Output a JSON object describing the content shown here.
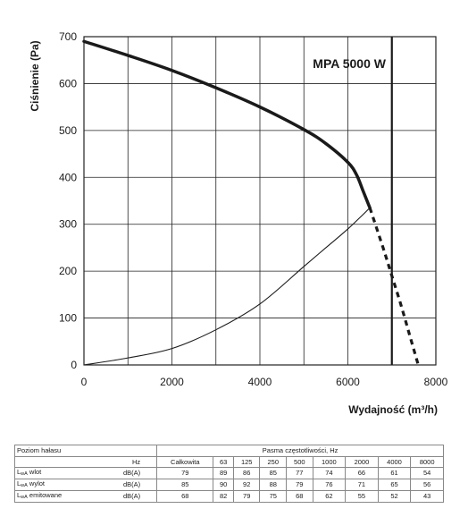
{
  "chart_data": {
    "type": "line",
    "model_label": "MPA 5000 W",
    "xlabel": "Wydajność (m³/h)",
    "ylabel": "Ciśnienie (Pa)",
    "xlim": [
      0,
      8000
    ],
    "ylim": [
      0,
      700
    ],
    "xticks": [
      0,
      2000,
      4000,
      6000,
      8000
    ],
    "yticks": [
      0,
      100,
      200,
      300,
      400,
      500,
      600,
      700
    ],
    "grid": true,
    "series": [
      {
        "style": "thick-solid",
        "x": [
          0,
          1000,
          2000,
          3000,
          4000,
          5000,
          5500,
          6000,
          6200,
          6350,
          6500
        ],
        "y": [
          690,
          660,
          628,
          591,
          550,
          502,
          472,
          432,
          405,
          370,
          335
        ]
      },
      {
        "style": "thick-dashed",
        "x": [
          6500,
          6800,
          7000,
          7200,
          7400,
          7600
        ],
        "y": [
          335,
          250,
          190,
          130,
          65,
          0
        ]
      },
      {
        "style": "thin-solid",
        "x": [
          0,
          1000,
          2000,
          3000,
          4000,
          5000,
          5500,
          6000,
          6500
        ],
        "y": [
          0,
          15,
          35,
          75,
          130,
          210,
          250,
          290,
          335
        ]
      },
      {
        "style": "vertical-line",
        "x": [
          7000,
          7000
        ],
        "y": [
          0,
          700
        ]
      }
    ]
  },
  "table": {
    "header_left": "Poziom hałasu",
    "header_group": "Pasma częstotliwości, Hz",
    "hz_label": "Hz",
    "columns": [
      "Całkowita",
      "63",
      "125",
      "250",
      "500",
      "1000",
      "2000",
      "4000",
      "8000"
    ],
    "rows": [
      {
        "prefix": "L",
        "sub": "wA",
        "name": " wlot",
        "unit": "dB(A)",
        "values": [
          "79",
          "89",
          "86",
          "85",
          "77",
          "74",
          "66",
          "61",
          "54"
        ]
      },
      {
        "prefix": "L",
        "sub": "wA",
        "name": " wylot",
        "unit": "dB(A)",
        "values": [
          "85",
          "90",
          "92",
          "88",
          "79",
          "76",
          "71",
          "65",
          "56"
        ]
      },
      {
        "prefix": "L",
        "sub": "wA",
        "name": " emitowane",
        "unit": "dB(A)",
        "values": [
          "68",
          "82",
          "79",
          "75",
          "68",
          "62",
          "55",
          "52",
          "43"
        ]
      }
    ]
  }
}
